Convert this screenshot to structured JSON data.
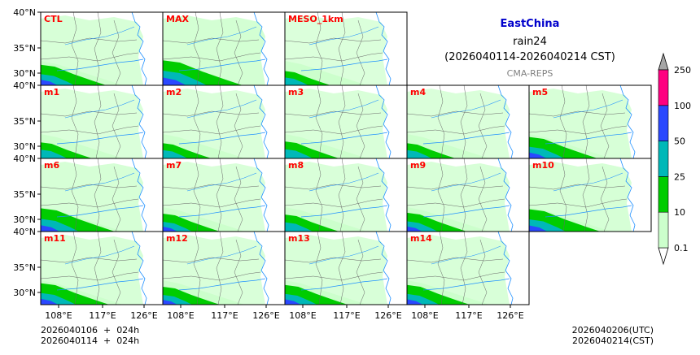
{
  "title": {
    "region": "EastChina",
    "variable": "rain24",
    "period": "(2026040114-2026040214 CST)",
    "model": "CMA-REPS"
  },
  "panels": [
    {
      "label": "CTL",
      "row": 0,
      "col": 0,
      "intensity": 1.15
    },
    {
      "label": "MAX",
      "row": 0,
      "col": 1,
      "intensity": 1.6
    },
    {
      "label": "MESO_1km",
      "row": 0,
      "col": 2,
      "intensity": 0.8
    },
    {
      "label": "m1",
      "row": 1,
      "col": 0,
      "intensity": 0.9
    },
    {
      "label": "m2",
      "row": 1,
      "col": 1,
      "intensity": 0.85
    },
    {
      "label": "m3",
      "row": 1,
      "col": 2,
      "intensity": 0.95
    },
    {
      "label": "m4",
      "row": 1,
      "col": 3,
      "intensity": 0.85
    },
    {
      "label": "m5",
      "row": 1,
      "col": 4,
      "intensity": 1.2
    },
    {
      "label": "m6",
      "row": 2,
      "col": 0,
      "intensity": 1.3
    },
    {
      "label": "m7",
      "row": 2,
      "col": 1,
      "intensity": 1.0
    },
    {
      "label": "m8",
      "row": 2,
      "col": 2,
      "intensity": 0.95
    },
    {
      "label": "m9",
      "row": 2,
      "col": 3,
      "intensity": 1.05
    },
    {
      "label": "m10",
      "row": 2,
      "col": 4,
      "intensity": 1.25
    },
    {
      "label": "m11",
      "row": 3,
      "col": 0,
      "intensity": 1.2
    },
    {
      "label": "m12",
      "row": 3,
      "col": 1,
      "intensity": 1.0
    },
    {
      "label": "m13",
      "row": 3,
      "col": 2,
      "intensity": 1.1
    },
    {
      "label": "m14",
      "row": 3,
      "col": 3,
      "intensity": 1.1
    }
  ],
  "axes": {
    "lat_ticks": [
      "40°N",
      "35°N",
      "30°N"
    ],
    "lon_ticks": [
      "108°E",
      "117°E",
      "126°E"
    ]
  },
  "colorbar": {
    "levels": [
      "0.1",
      "10",
      "25",
      "50",
      "100",
      "250"
    ],
    "colors": [
      "#ccffcc",
      "#00cc00",
      "#00b8b8",
      "#2a48ff",
      "#ff0080"
    ],
    "over_color": "#a6a6a6",
    "under_color": "#ffffff"
  },
  "footer": {
    "left_line1": "2026040106  +  024h",
    "left_line2": "2026040114  +  024h",
    "right_line1": "2026040206(UTC)",
    "right_line2": "2026040214(CST)"
  },
  "colors": {
    "panel_label": "#ff0000",
    "region_title": "#0000cc",
    "model_label": "#808080",
    "river": "#1e90ff",
    "border": "#666666"
  }
}
